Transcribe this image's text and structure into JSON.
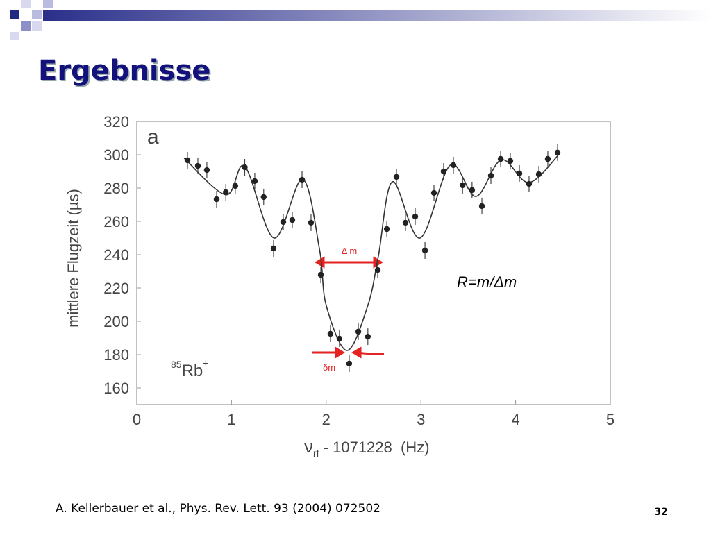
{
  "slide_title": "Ergebnisse",
  "citation": "A. Kellerbauer et al., Phys. Rev. Lett. 93 (2004) 072502",
  "page_number": "32",
  "chart_data": {
    "type": "scatter",
    "panel_label": "a",
    "y_label": "mittlere Flugzeit  (µs)",
    "x_label": {
      "symbol": "ν",
      "subscript": "rf",
      "text": " - 1071228  (Hz)"
    },
    "isotope": {
      "mass": "85",
      "element": "Rb",
      "charge": "+"
    },
    "annotations": {
      "width_label": "Δ m",
      "shift_label": "δm",
      "resolution": "R=m/Δm"
    },
    "xlim": [
      0,
      5
    ],
    "ylim": [
      150,
      320
    ],
    "xticks": [
      0,
      1,
      2,
      3,
      4,
      5
    ],
    "yticks": [
      160,
      180,
      200,
      220,
      240,
      260,
      280,
      300,
      320
    ],
    "grid": false,
    "color": "#222222",
    "points": {
      "x": [
        0.535,
        0.645,
        0.74,
        0.843,
        0.94,
        1.04,
        1.14,
        1.246,
        1.34,
        1.444,
        1.547,
        1.642,
        1.745,
        1.84,
        1.943,
        2.045,
        2.14,
        2.243,
        2.339,
        2.44,
        2.544,
        2.64,
        2.742,
        2.837,
        2.94,
        3.043,
        3.138,
        3.24,
        3.343,
        3.44,
        3.54,
        3.644,
        3.739,
        3.842,
        3.944,
        4.04,
        4.142,
        4.245,
        4.34,
        4.443
      ],
      "y": [
        296.7,
        293.3,
        290.8,
        273.3,
        277.5,
        281.3,
        292.5,
        284.2,
        274.6,
        243.8,
        259.6,
        260.8,
        285,
        259.2,
        227.9,
        192.5,
        189.6,
        174.6,
        193.8,
        190.8,
        230.8,
        255.4,
        286.7,
        259.2,
        262.9,
        242.5,
        277.1,
        290,
        293.8,
        281.7,
        278.8,
        269.2,
        287.5,
        297.5,
        296.3,
        288.8,
        282.5,
        288.3,
        297.5,
        301.3
      ],
      "errors": [
        5,
        5,
        5,
        5,
        5,
        5,
        5,
        5,
        5,
        5,
        5,
        5,
        5,
        5,
        5,
        5,
        5,
        5,
        5,
        5,
        5,
        5,
        5,
        5,
        5,
        5,
        5,
        5,
        5,
        5,
        5,
        5,
        5,
        5,
        5,
        5,
        5,
        5,
        5,
        5
      ]
    },
    "fit": {
      "x": [
        0.5,
        0.94,
        1.14,
        1.45,
        1.75,
        1.93,
        2.0,
        2.22,
        2.44,
        2.55,
        2.7,
        2.99,
        3.31,
        3.58,
        3.85,
        4.14,
        4.46
      ],
      "y": [
        298,
        276,
        293,
        250,
        285.4,
        243,
        209.6,
        182.5,
        209.6,
        238.8,
        283.8,
        250,
        293.8,
        275,
        297,
        283.3,
        300.4
      ]
    }
  }
}
